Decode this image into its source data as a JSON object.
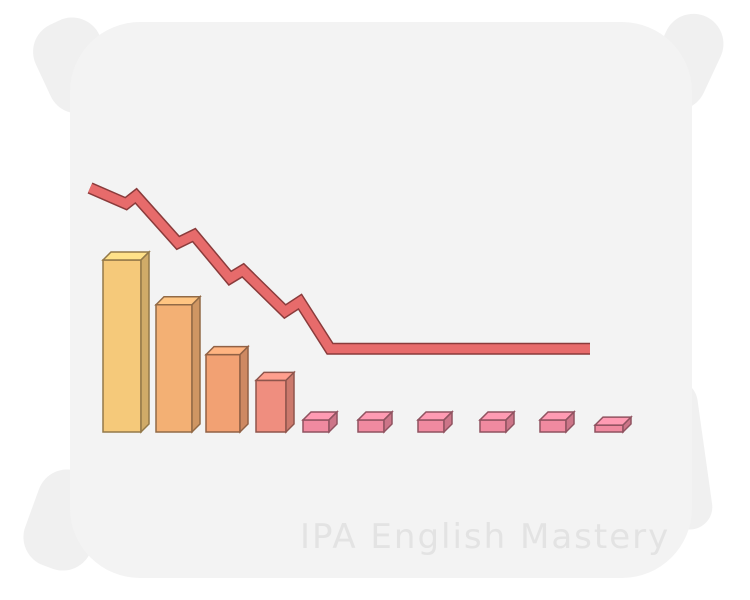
{
  "chart_data": {
    "type": "bar",
    "values": [
      1.0,
      0.74,
      0.45,
      0.3,
      0.07,
      0.07,
      0.07,
      0.07,
      0.07,
      0.04
    ],
    "colors": [
      "#f5c97a",
      "#f3b074",
      "#f2a173",
      "#ef8e7f",
      "#f08aa0",
      "#f08aa0",
      "#f08aa0",
      "#f08aa0",
      "#f08aa0",
      "#f08aa0"
    ],
    "trend_line": [
      1.0,
      0.92,
      0.96,
      0.72,
      0.76,
      0.54,
      0.58,
      0.37,
      0.42,
      0.18,
      0.18,
      0.18,
      0.18,
      0.18,
      0.18
    ],
    "trend_color": "#e76b6b"
  },
  "watermark": {
    "text": "IPA English Mastery"
  }
}
